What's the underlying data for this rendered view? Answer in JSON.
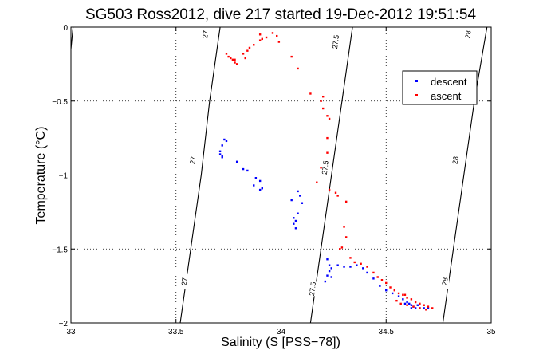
{
  "chart_data": {
    "type": "scatter",
    "title": "SG503 Ross2012, dive 217 started 19-Dec-2012 19:51:54",
    "xlabel": "Salinity (S [PSS−78])",
    "ylabel": "Temperature (°C)",
    "xlim": [
      33,
      35
    ],
    "ylim": [
      -2,
      0
    ],
    "xticks": [
      "33",
      "33.5",
      "34",
      "34.5",
      "35"
    ],
    "yticks": [
      "−2",
      "−1.5",
      "−1",
      "−0.5",
      "0"
    ],
    "xtick_values": [
      33,
      33.5,
      34,
      34.5,
      35
    ],
    "ytick_values": [
      -2,
      -1.5,
      -1,
      -0.5,
      0
    ],
    "grid": true,
    "legend_position": "top-right",
    "series": [
      {
        "name": "descent",
        "color": "#0000ff",
        "points": [
          [
            33.73,
            -0.76
          ],
          [
            33.74,
            -0.77
          ],
          [
            33.72,
            -0.8
          ],
          [
            33.71,
            -0.84
          ],
          [
            33.72,
            -0.88
          ],
          [
            33.71,
            -0.86
          ],
          [
            33.72,
            -0.87
          ],
          [
            33.79,
            -0.91
          ],
          [
            33.82,
            -0.96
          ],
          [
            33.84,
            -0.97
          ],
          [
            33.88,
            -1.02
          ],
          [
            33.9,
            -1.04
          ],
          [
            33.91,
            -1.09
          ],
          [
            33.9,
            -1.1
          ],
          [
            33.87,
            -1.07
          ],
          [
            34.08,
            -1.11
          ],
          [
            34.09,
            -1.14
          ],
          [
            34.05,
            -1.17
          ],
          [
            34.1,
            -1.19
          ],
          [
            34.08,
            -1.26
          ],
          [
            34.06,
            -1.29
          ],
          [
            34.07,
            -1.31
          ],
          [
            34.06,
            -1.33
          ],
          [
            34.07,
            -1.36
          ],
          [
            34.22,
            -1.57
          ],
          [
            34.23,
            -1.61
          ],
          [
            34.24,
            -1.63
          ],
          [
            34.23,
            -1.65
          ],
          [
            34.22,
            -1.68
          ],
          [
            34.21,
            -1.72
          ],
          [
            34.24,
            -1.69
          ],
          [
            34.27,
            -1.61
          ],
          [
            34.3,
            -1.62
          ],
          [
            34.33,
            -1.62
          ],
          [
            34.36,
            -1.61
          ],
          [
            34.39,
            -1.63
          ],
          [
            34.41,
            -1.66
          ],
          [
            34.44,
            -1.7
          ],
          [
            34.47,
            -1.75
          ],
          [
            34.5,
            -1.78
          ],
          [
            34.53,
            -1.8
          ],
          [
            34.56,
            -1.82
          ],
          [
            34.58,
            -1.84
          ],
          [
            34.6,
            -1.86
          ],
          [
            34.61,
            -1.87
          ],
          [
            34.62,
            -1.88
          ],
          [
            34.63,
            -1.89
          ],
          [
            34.64,
            -1.9
          ],
          [
            34.66,
            -1.9
          ],
          [
            34.68,
            -1.9
          ],
          [
            34.7,
            -1.9
          ],
          [
            34.59,
            -1.87
          ],
          [
            34.65,
            -1.88
          ],
          [
            34.62,
            -1.9
          ]
        ]
      },
      {
        "name": "ascent",
        "color": "#ff0000",
        "points": [
          [
            33.74,
            -0.18
          ],
          [
            33.75,
            -0.2
          ],
          [
            33.76,
            -0.21
          ],
          [
            33.77,
            -0.22
          ],
          [
            33.78,
            -0.22
          ],
          [
            33.79,
            -0.25
          ],
          [
            33.78,
            -0.24
          ],
          [
            33.83,
            -0.21
          ],
          [
            33.85,
            -0.14
          ],
          [
            33.87,
            -0.12
          ],
          [
            33.9,
            -0.09
          ],
          [
            33.93,
            -0.07
          ],
          [
            33.96,
            -0.04
          ],
          [
            33.98,
            -0.06
          ],
          [
            33.99,
            -0.1
          ],
          [
            33.91,
            -0.08
          ],
          [
            33.9,
            -0.05
          ],
          [
            33.84,
            -0.16
          ],
          [
            33.82,
            -0.18
          ],
          [
            34.05,
            -0.2
          ],
          [
            34.08,
            -0.28
          ],
          [
            34.14,
            -0.45
          ],
          [
            34.2,
            -0.47
          ],
          [
            34.19,
            -0.5
          ],
          [
            34.2,
            -0.55
          ],
          [
            34.22,
            -0.6
          ],
          [
            34.23,
            -0.62
          ],
          [
            34.22,
            -0.75
          ],
          [
            34.22,
            -0.85
          ],
          [
            34.19,
            -0.95
          ],
          [
            34.17,
            -1.05
          ],
          [
            34.23,
            -1.1
          ],
          [
            34.26,
            -1.12
          ],
          [
            34.27,
            -1.14
          ],
          [
            34.31,
            -1.18
          ],
          [
            34.31,
            -1.42
          ],
          [
            34.3,
            -1.35
          ],
          [
            34.29,
            -1.49
          ],
          [
            34.28,
            -1.5
          ],
          [
            34.33,
            -1.56
          ],
          [
            34.35,
            -1.59
          ],
          [
            34.38,
            -1.6
          ],
          [
            34.41,
            -1.62
          ],
          [
            34.44,
            -1.66
          ],
          [
            34.46,
            -1.69
          ],
          [
            34.48,
            -1.71
          ],
          [
            34.5,
            -1.73
          ],
          [
            34.52,
            -1.76
          ],
          [
            34.54,
            -1.78
          ],
          [
            34.56,
            -1.8
          ],
          [
            34.58,
            -1.81
          ],
          [
            34.6,
            -1.83
          ],
          [
            34.62,
            -1.84
          ],
          [
            34.64,
            -1.86
          ],
          [
            34.66,
            -1.87
          ],
          [
            34.68,
            -1.88
          ],
          [
            34.7,
            -1.89
          ],
          [
            34.72,
            -1.9
          ],
          [
            34.55,
            -1.85
          ],
          [
            34.57,
            -1.87
          ],
          [
            34.6,
            -1.88
          ],
          [
            34.63,
            -1.89
          ],
          [
            34.66,
            -1.9
          ],
          [
            34.69,
            -1.91
          ],
          [
            34.59,
            -1.81
          ]
        ]
      }
    ],
    "contours": [
      {
        "label": "27",
        "color": "#000000",
        "points": [
          [
            33.52,
            -2.0
          ],
          [
            33.57,
            -1.5
          ],
          [
            33.62,
            -1.0
          ],
          [
            33.66,
            -0.5
          ],
          [
            33.71,
            0.0
          ]
        ]
      },
      {
        "label": "27.5",
        "color": "#000000",
        "points": [
          [
            34.14,
            -2.0
          ],
          [
            34.19,
            -1.5
          ],
          [
            34.24,
            -1.0
          ],
          [
            34.29,
            -0.5
          ],
          [
            34.34,
            0.0
          ]
        ]
      },
      {
        "label": "28",
        "color": "#000000",
        "points": [
          [
            34.77,
            -2.0
          ],
          [
            34.82,
            -1.5
          ],
          [
            34.87,
            -1.0
          ],
          [
            34.92,
            -0.5
          ],
          [
            34.98,
            0.0
          ]
        ]
      }
    ],
    "left_contour": {
      "color": "#000000",
      "points": [
        [
          33.0,
          -0.15
        ],
        [
          33.01,
          0.0
        ]
      ]
    },
    "contour_labels": [
      {
        "text": "27",
        "at": [
          33.64,
          -0.05
        ]
      },
      {
        "text": "27",
        "at": [
          33.58,
          -0.9
        ]
      },
      {
        "text": "27",
        "at": [
          33.54,
          -1.72
        ]
      },
      {
        "text": "27.5",
        "at": [
          34.26,
          -0.1
        ]
      },
      {
        "text": "27.5",
        "at": [
          34.21,
          -0.95
        ]
      },
      {
        "text": "27.5",
        "at": [
          34.15,
          -1.77
        ]
      },
      {
        "text": "28",
        "at": [
          34.89,
          -0.05
        ]
      },
      {
        "text": "28",
        "at": [
          34.83,
          -0.9
        ]
      },
      {
        "text": "28",
        "at": [
          34.78,
          -1.72
        ]
      }
    ]
  }
}
